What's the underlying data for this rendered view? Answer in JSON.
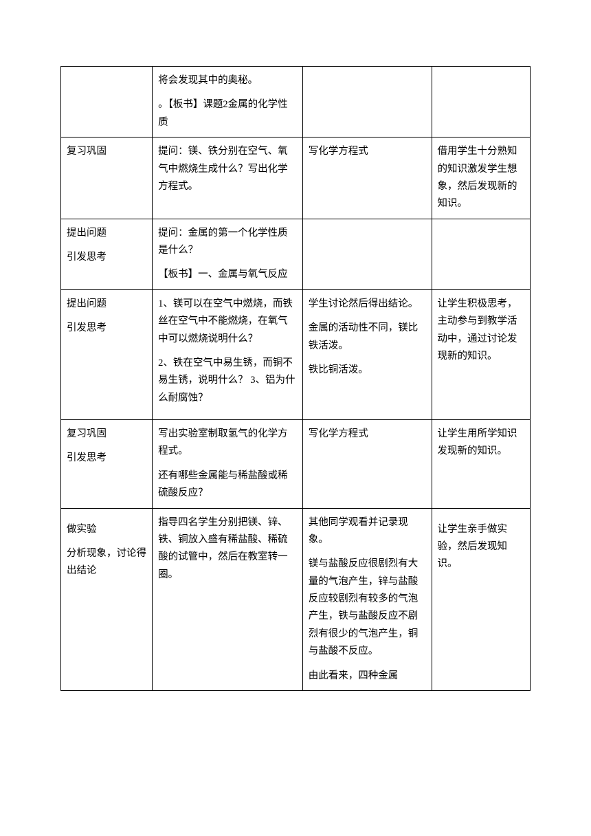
{
  "rows": [
    {
      "c1": "",
      "c2": [
        "将会发现其中的奥秘。",
        "。【板书】课题2金属的化学性质"
      ],
      "c3": "",
      "c4": ""
    },
    {
      "c1": "复习巩固",
      "c2": [
        "提问：镁、铁分别在空气、氧气中燃烧生成什么？写出化学方程式。"
      ],
      "c3": "写化学方程式",
      "c4": "借用学生十分熟知的知识激发学生想象，然后发现新的知识。"
    },
    {
      "c1": [
        "提出问题",
        "引发思考"
      ],
      "c2": [
        "提问：金属的第一个化学性质是什么？",
        "【板书】一、金属与氧气反应"
      ],
      "c3": "",
      "c4": ""
    },
    {
      "c1": [
        "提出问题",
        "引发思考"
      ],
      "c2": [
        "1、镁可以在空气中燃烧，而铁丝在空气中不能燃烧，在氧气中可以燃烧说明什么？",
        "2、铁在空气中易生锈，而铜不易生锈，说明什么？\n3、铝为什么耐腐蚀？",
        ""
      ],
      "c3": [
        "学生讨论然后得出结论。",
        "金属的活动性不同，镁比铁活泼。",
        "铁比铜活泼。"
      ],
      "c4": "让学生积极思考，主动参与到教学活动中，通过讨论发现新的知识。"
    },
    {
      "c1": [
        "复习巩固",
        "引发思考"
      ],
      "c2": [
        "写出实验室制取氢气的化学方程式。",
        "还有哪些金属能与稀盐酸或稀硫酸反应？"
      ],
      "c3": "写化学方程式",
      "c4": "让学生用所学知识发现新的知识。"
    },
    {
      "c1": [
        "",
        "做实验",
        "",
        "",
        "分析现象，讨论得出结论"
      ],
      "c2": [
        "指导四名学生分别把镁、锌、铁、铜放入盛有稀盐酸、稀硫酸的试管中，然后在教室转一圈。"
      ],
      "c3": [
        "其他同学观看并记录现象。",
        "镁与盐酸反应很剧烈有大量的气泡产生，锌与盐酸反应较剧烈有较多的气泡产生，铁与盐酸反应不剧烈有很少的气泡产生，铜与盐酸不反应。",
        "",
        "由此看来，四种金属"
      ],
      "c4": [
        "",
        "让学生亲手做实验，然后发现知识。"
      ]
    }
  ]
}
